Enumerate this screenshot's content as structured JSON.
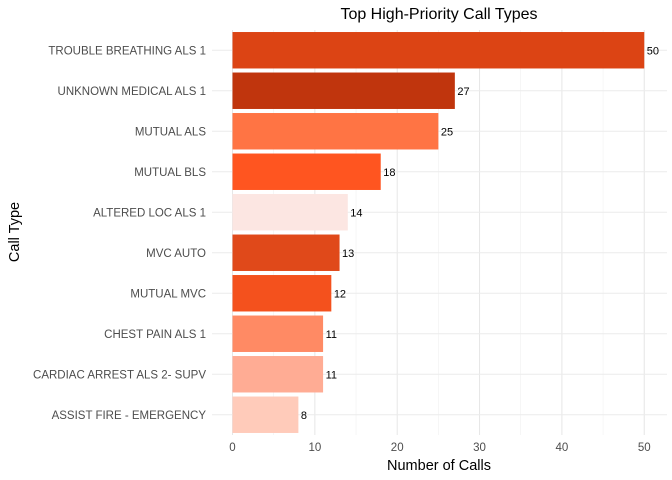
{
  "chart_data": {
    "type": "bar",
    "orientation": "horizontal",
    "title": "Top High-Priority Call Types",
    "xlabel": "Number of Calls",
    "ylabel": "Call Type",
    "xlim": [
      0,
      51
    ],
    "x_ticks": [
      0,
      10,
      20,
      30,
      40,
      50
    ],
    "grid": true,
    "legend": "none",
    "bars": [
      {
        "category": "TROUBLE BREATHING ALS 1",
        "value": 50,
        "label": "50",
        "color": "#DC4414"
      },
      {
        "category": "UNKNOWN MEDICAL ALS 1",
        "value": 27,
        "label": "27",
        "color": "#C0350D"
      },
      {
        "category": "MUTUAL ALS",
        "value": 25,
        "label": "25",
        "color": "#FF7444"
      },
      {
        "category": "MUTUAL BLS",
        "value": 18,
        "label": "18",
        "color": "#FF5520"
      },
      {
        "category": "ALTERED LOC ALS 1",
        "value": 14,
        "label": "14",
        "color": "#FCE6E2"
      },
      {
        "category": "MVC AUTO",
        "value": 13,
        "label": "13",
        "color": "#E0491A"
      },
      {
        "category": "MUTUAL MVC",
        "value": 12,
        "label": "12",
        "color": "#F4511D"
      },
      {
        "category": "CHEST PAIN ALS 1",
        "value": 11,
        "label": "11",
        "color": "#FF8A64"
      },
      {
        "category": "CARDIAC ARREST ALS 2- SUPV",
        "value": 11,
        "label": "11",
        "color": "#FFAC94"
      },
      {
        "category": "ASSIST FIRE - EMERGENCY",
        "value": 8,
        "label": "8",
        "color": "#FFCBBA"
      }
    ]
  }
}
